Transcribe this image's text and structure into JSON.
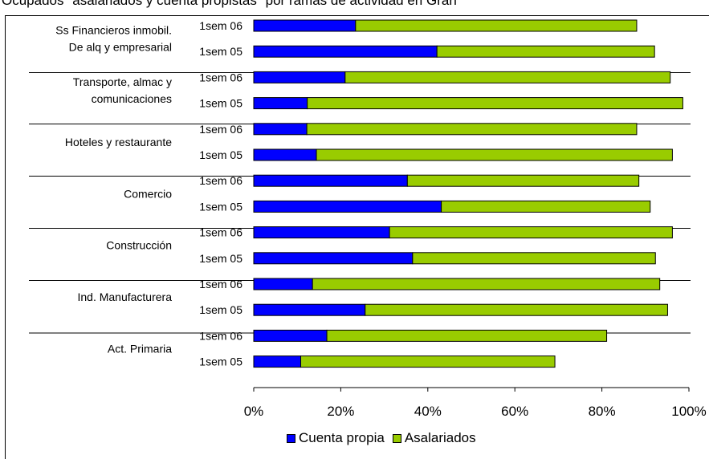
{
  "chart_data": {
    "type": "bar",
    "orientation": "horizontal",
    "stacked": true,
    "title": "Ocupados \"asalariados y cuenta propistas\" por ramas de actividad en Gran",
    "xlabel": "",
    "ylabel": "",
    "xlim": [
      0,
      100
    ],
    "x_tick_labels": [
      "0%",
      "20%",
      "40%",
      "60%",
      "80%",
      "100%"
    ],
    "grid": false,
    "legend_position": "bottom",
    "groups": [
      {
        "label": "Ss Financieros inmobil. De alq y empresarial",
        "label_lines": [
          "Ss Financieros inmobil.",
          "De alq y empresarial"
        ]
      },
      {
        "label": "Transporte, almac y comunicaciones",
        "label_lines": [
          "Transporte, almac y",
          "comunicaciones"
        ]
      },
      {
        "label": "Hoteles y restaurante",
        "label_lines": [
          "Hoteles y restaurante"
        ]
      },
      {
        "label": "Comercio",
        "label_lines": [
          "Comercio"
        ]
      },
      {
        "label": "Construcción",
        "label_lines": [
          "Construcción"
        ]
      },
      {
        "label": "Ind. Manufacturera",
        "label_lines": [
          "Ind. Manufacturera"
        ]
      },
      {
        "label": "Act. Primaria",
        "label_lines": [
          "Act. Primaria"
        ]
      }
    ],
    "categories": [
      "1sem 06",
      "1sem 05",
      "1sem 06",
      "1sem 05",
      "1sem 06",
      "1sem 05",
      "1sem 06",
      "1sem 05",
      "1sem 06",
      "1sem 05",
      "1sem 06",
      "1sem 05",
      "1sem 06",
      "1sem 05"
    ],
    "series": [
      {
        "name": "Cuenta propia",
        "color": "#0000ff",
        "values": [
          23.4,
          42.1,
          21.0,
          12.3,
          12.2,
          14.4,
          35.3,
          43.1,
          31.2,
          36.5,
          13.5,
          25.6,
          16.8,
          10.8
        ]
      },
      {
        "name": "Asalariados",
        "color": "#99cc00",
        "values": [
          64.6,
          50.0,
          74.7,
          86.3,
          75.8,
          81.8,
          53.2,
          48.0,
          65.0,
          55.8,
          79.8,
          69.5,
          64.3,
          58.4
        ]
      }
    ]
  }
}
